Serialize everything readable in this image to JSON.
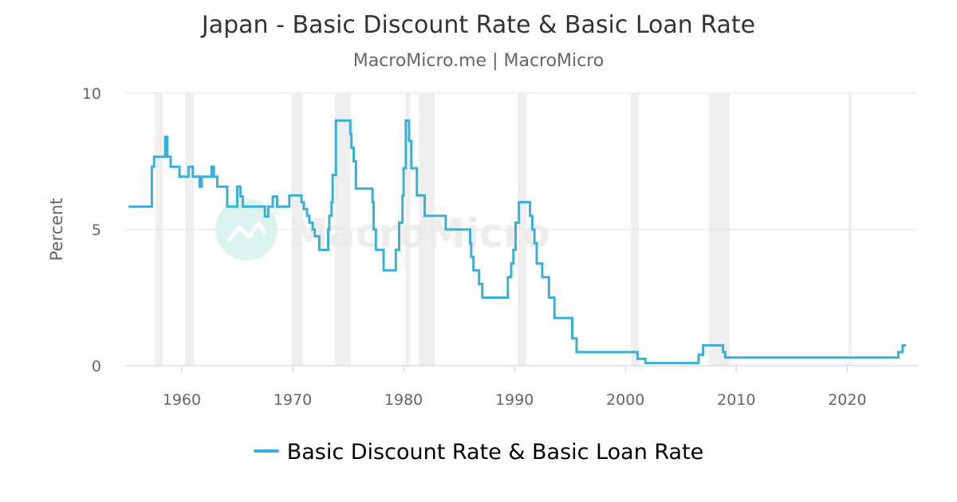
{
  "header": {
    "title": "Japan - Basic Discount Rate & Basic Loan Rate",
    "subtitle": "MacroMicro.me | MacroMicro"
  },
  "watermark": {
    "text": "MacroMicro",
    "icon": "macromicro-logo-icon"
  },
  "colors": {
    "series": "#3aafda",
    "recession": "#efefef",
    "grid": "#e0e0e0",
    "axis_text": "#666666",
    "watermark": "#d9f3ee"
  },
  "legend": {
    "label": "Basic Discount Rate & Basic Loan Rate",
    "placement": "bottom-center"
  },
  "chart_data": {
    "type": "line",
    "title": "Japan - Basic Discount Rate & Basic Loan Rate",
    "subtitle": "MacroMicro.me | MacroMicro",
    "xlabel": "",
    "ylabel": "Percent",
    "xlim": [
      1954.9,
      2026.3
    ],
    "ylim": [
      0,
      10
    ],
    "x_ticks": [
      1960,
      1970,
      1980,
      1990,
      2000,
      2010,
      2020
    ],
    "y_ticks": [
      0,
      5,
      10
    ],
    "grid": "horizontal",
    "legend_position": "bottom",
    "step": true,
    "recession_bands": [
      [
        1957.6,
        1958.3
      ],
      [
        1960.3,
        1961.1
      ],
      [
        1969.9,
        1970.9
      ],
      [
        1973.8,
        1975.2
      ],
      [
        1980.2,
        1980.6
      ],
      [
        1981.4,
        1982.8
      ],
      [
        1990.3,
        1991.1
      ],
      [
        2000.5,
        2001.2
      ],
      [
        2007.5,
        2009.4
      ],
      [
        2020.1,
        2020.4
      ]
    ],
    "series": [
      {
        "name": "Basic Discount Rate & Basic Loan Rate",
        "x": [
          1955.2,
          1955.6,
          1957.3,
          1957.5,
          1958.5,
          1958.7,
          1959.0,
          1959.8,
          1960.6,
          1961.0,
          1961.6,
          1961.8,
          1962.7,
          1962.9,
          1963.2,
          1964.1,
          1965.0,
          1965.3,
          1965.5,
          1967.5,
          1967.8,
          1968.2,
          1968.6,
          1969.7,
          1970.8,
          1971.0,
          1971.3,
          1971.5,
          1971.8,
          1972.0,
          1972.4,
          1973.2,
          1973.3,
          1973.5,
          1973.6,
          1973.9,
          1975.2,
          1975.3,
          1975.5,
          1975.7,
          1977.2,
          1977.3,
          1977.5,
          1978.2,
          1979.3,
          1979.6,
          1979.9,
          1980.0,
          1980.2,
          1980.5,
          1980.7,
          1980.9,
          1981.2,
          1981.9,
          1983.8,
          1986.0,
          1986.1,
          1986.3,
          1986.8,
          1987.1,
          1989.4,
          1989.7,
          1989.9,
          1990.1,
          1990.4,
          1990.6,
          1991.4,
          1991.6,
          1991.8,
          1992.0,
          1992.2,
          1992.5,
          1993.1,
          1993.6,
          1995.2,
          1995.6,
          2001.1,
          2001.5,
          2001.8,
          2006.6,
          2007.0,
          2007.7,
          2008.8,
          2009.0,
          2024.6,
          2025.0,
          2025.3
        ],
        "values": [
          5.84,
          5.84,
          7.3,
          7.67,
          8.4,
          7.67,
          7.3,
          6.94,
          7.3,
          6.94,
          6.57,
          6.94,
          7.3,
          6.94,
          6.57,
          5.84,
          6.57,
          6.21,
          5.84,
          5.48,
          5.84,
          6.21,
          5.84,
          6.25,
          6.0,
          5.75,
          5.5,
          5.25,
          5.0,
          4.75,
          4.25,
          5.0,
          5.5,
          6.0,
          7.0,
          9.0,
          8.5,
          8.0,
          7.5,
          6.5,
          6.0,
          5.0,
          4.25,
          3.5,
          4.25,
          5.25,
          6.25,
          7.25,
          9.0,
          8.25,
          7.25,
          7.25,
          6.25,
          5.5,
          5.0,
          4.5,
          4.0,
          3.5,
          3.0,
          2.5,
          3.25,
          3.75,
          4.25,
          5.25,
          6.0,
          6.0,
          5.5,
          5.0,
          4.5,
          3.75,
          3.75,
          3.25,
          2.5,
          1.75,
          1.0,
          0.5,
          0.25,
          0.25,
          0.1,
          0.4,
          0.75,
          0.75,
          0.5,
          0.3,
          0.5,
          0.75,
          0.75
        ]
      }
    ]
  }
}
